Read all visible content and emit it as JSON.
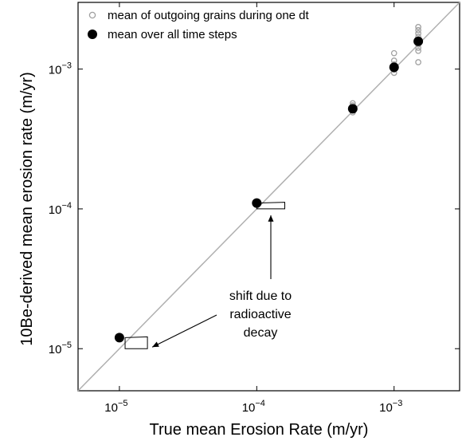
{
  "chart_data": {
    "type": "scatter",
    "xscale": "log",
    "yscale": "log",
    "xlim": [
      5e-06,
      0.003
    ],
    "ylim": [
      5e-06,
      0.003
    ],
    "xlabel": "True mean Erosion Rate (m/yr)",
    "ylabel": "10Be-derived mean erosion rate (m/yr)",
    "x_ticks": [
      {
        "value": 1e-05,
        "base": "10",
        "exp": "−5"
      },
      {
        "value": 0.0001,
        "base": "10",
        "exp": "−4"
      },
      {
        "value": 0.001,
        "base": "10",
        "exp": "−3"
      }
    ],
    "y_ticks": [
      {
        "value": 1e-05,
        "base": "10",
        "exp": "−5"
      },
      {
        "value": 0.0001,
        "base": "10",
        "exp": "−4"
      },
      {
        "value": 0.001,
        "base": "10",
        "exp": "−3"
      }
    ],
    "one_to_one_line": true,
    "legend_position": "top-left",
    "series": [
      {
        "name": "mean of outgoing grains during one dt",
        "marker": "open-circle",
        "color": "#a0a0a0",
        "points": [
          {
            "x": 0.0005,
            "y": 0.00057
          },
          {
            "x": 0.0005,
            "y": 0.00055
          },
          {
            "x": 0.0005,
            "y": 0.00053
          },
          {
            "x": 0.0005,
            "y": 0.00049
          },
          {
            "x": 0.001,
            "y": 0.0013
          },
          {
            "x": 0.001,
            "y": 0.00115
          },
          {
            "x": 0.001,
            "y": 0.00108
          },
          {
            "x": 0.001,
            "y": 0.00104
          },
          {
            "x": 0.001,
            "y": 0.00099
          },
          {
            "x": 0.001,
            "y": 0.00094
          },
          {
            "x": 0.0015,
            "y": 0.002
          },
          {
            "x": 0.0015,
            "y": 0.0019
          },
          {
            "x": 0.0015,
            "y": 0.0018
          },
          {
            "x": 0.0015,
            "y": 0.0017
          },
          {
            "x": 0.0015,
            "y": 0.0016
          },
          {
            "x": 0.0015,
            "y": 0.0015
          },
          {
            "x": 0.0015,
            "y": 0.00142
          },
          {
            "x": 0.0015,
            "y": 0.00135
          },
          {
            "x": 0.0015,
            "y": 0.00112
          }
        ]
      },
      {
        "name": "mean over all time steps",
        "marker": "filled-circle",
        "color": "#000000",
        "points": [
          {
            "x": 1e-05,
            "y": 1.2e-05
          },
          {
            "x": 0.0001,
            "y": 0.00011
          },
          {
            "x": 0.0005,
            "y": 0.00052
          },
          {
            "x": 0.001,
            "y": 0.00103
          },
          {
            "x": 0.0015,
            "y": 0.00158
          }
        ]
      }
    ],
    "annotations": {
      "text_lines": [
        "shift due to",
        "radioactive",
        "decay"
      ],
      "boxes": [
        {
          "x1": 1.1e-05,
          "x2": 1.6e-05,
          "y_top": 1.2e-05,
          "y_bottom": 1e-05
        },
        {
          "x1": 0.0001,
          "x2": 0.00016,
          "y_top": 0.00011,
          "y_bottom": 0.0001
        }
      ]
    }
  }
}
